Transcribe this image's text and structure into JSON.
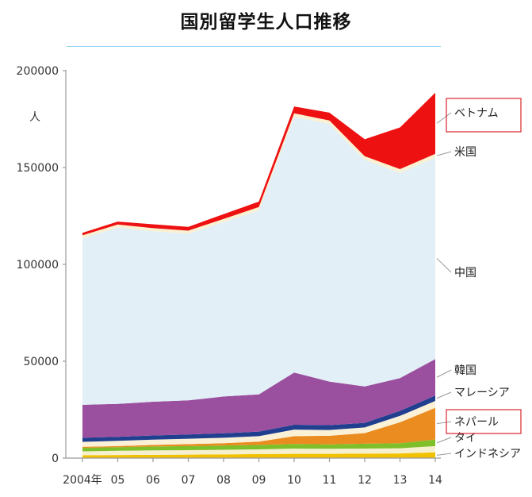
{
  "title": "国別留学生人口推移",
  "chart_data": {
    "type": "area",
    "stacked": true,
    "ylabel": "人",
    "ylim": [
      0,
      200000
    ],
    "yticks": [
      "0",
      "50000",
      "100000",
      "150000",
      "200000"
    ],
    "x": [
      "2004年",
      "05",
      "06",
      "07",
      "08",
      "09",
      "10",
      "11",
      "12",
      "13",
      "14"
    ],
    "series": [
      {
        "name": "インドネシア",
        "color": "#f2c200",
        "values": [
          1500,
          1600,
          1700,
          1800,
          1900,
          2100,
          2200,
          2200,
          2300,
          2400,
          3000
        ]
      },
      {
        "name": "",
        "color": "#f6f0cf",
        "values": [
          2000,
          2200,
          2300,
          2300,
          2400,
          2400,
          2700,
          2600,
          2600,
          2700,
          3200
        ]
      },
      {
        "name": "タイ",
        "color": "#7fbf2a",
        "values": [
          1800,
          1800,
          2000,
          2100,
          2200,
          2300,
          2400,
          2300,
          2500,
          2600,
          3400
        ]
      },
      {
        "name": "ネパール",
        "color": "#ea8c1f",
        "values": [
          500,
          600,
          800,
          1000,
          1200,
          1700,
          4000,
          4400,
          5500,
          10800,
          16400
        ]
      },
      {
        "name": "",
        "color": "#fbf1d6",
        "values": [
          2600,
          2700,
          2700,
          2800,
          2800,
          2800,
          3400,
          3000,
          2900,
          3300,
          3500
        ]
      },
      {
        "name": "マレーシア",
        "color": "#203f8f",
        "values": [
          2100,
          2100,
          2200,
          2200,
          2300,
          2400,
          2500,
          2500,
          2400,
          2600,
          2800
        ]
      },
      {
        "name": "韓国",
        "color": "#9b4f9f",
        "values": [
          17000,
          17000,
          17400,
          17600,
          19000,
          19200,
          27000,
          22500,
          18800,
          16900,
          18800
        ]
      },
      {
        "name": "中国",
        "color": "#e2eff7",
        "values": [
          86000,
          91000,
          88000,
          86000,
          90000,
          95000,
          132000,
          133000,
          117000,
          106000,
          104000
        ]
      },
      {
        "name": "米国",
        "color": "#faf0d2",
        "values": [
          1500,
          1600,
          1600,
          1600,
          1700,
          1700,
          1800,
          1800,
          1800,
          1900,
          2000
        ]
      },
      {
        "name": "ベトナム",
        "color": "#ee1111",
        "values": [
          1300,
          1500,
          2000,
          2000,
          2400,
          2800,
          3500,
          4000,
          8800,
          21500,
          31500
        ]
      }
    ],
    "labels": [
      "ベトナム",
      "米国",
      "中国",
      "韓国",
      "マレーシア",
      "ネパール",
      "タイ",
      "インドネシア"
    ],
    "highlighted": [
      "ベトナム",
      "ネパール"
    ],
    "highlight_color": "#d9262c",
    "axis_color": "#9a9a9a",
    "grid": false,
    "legend": "right"
  }
}
